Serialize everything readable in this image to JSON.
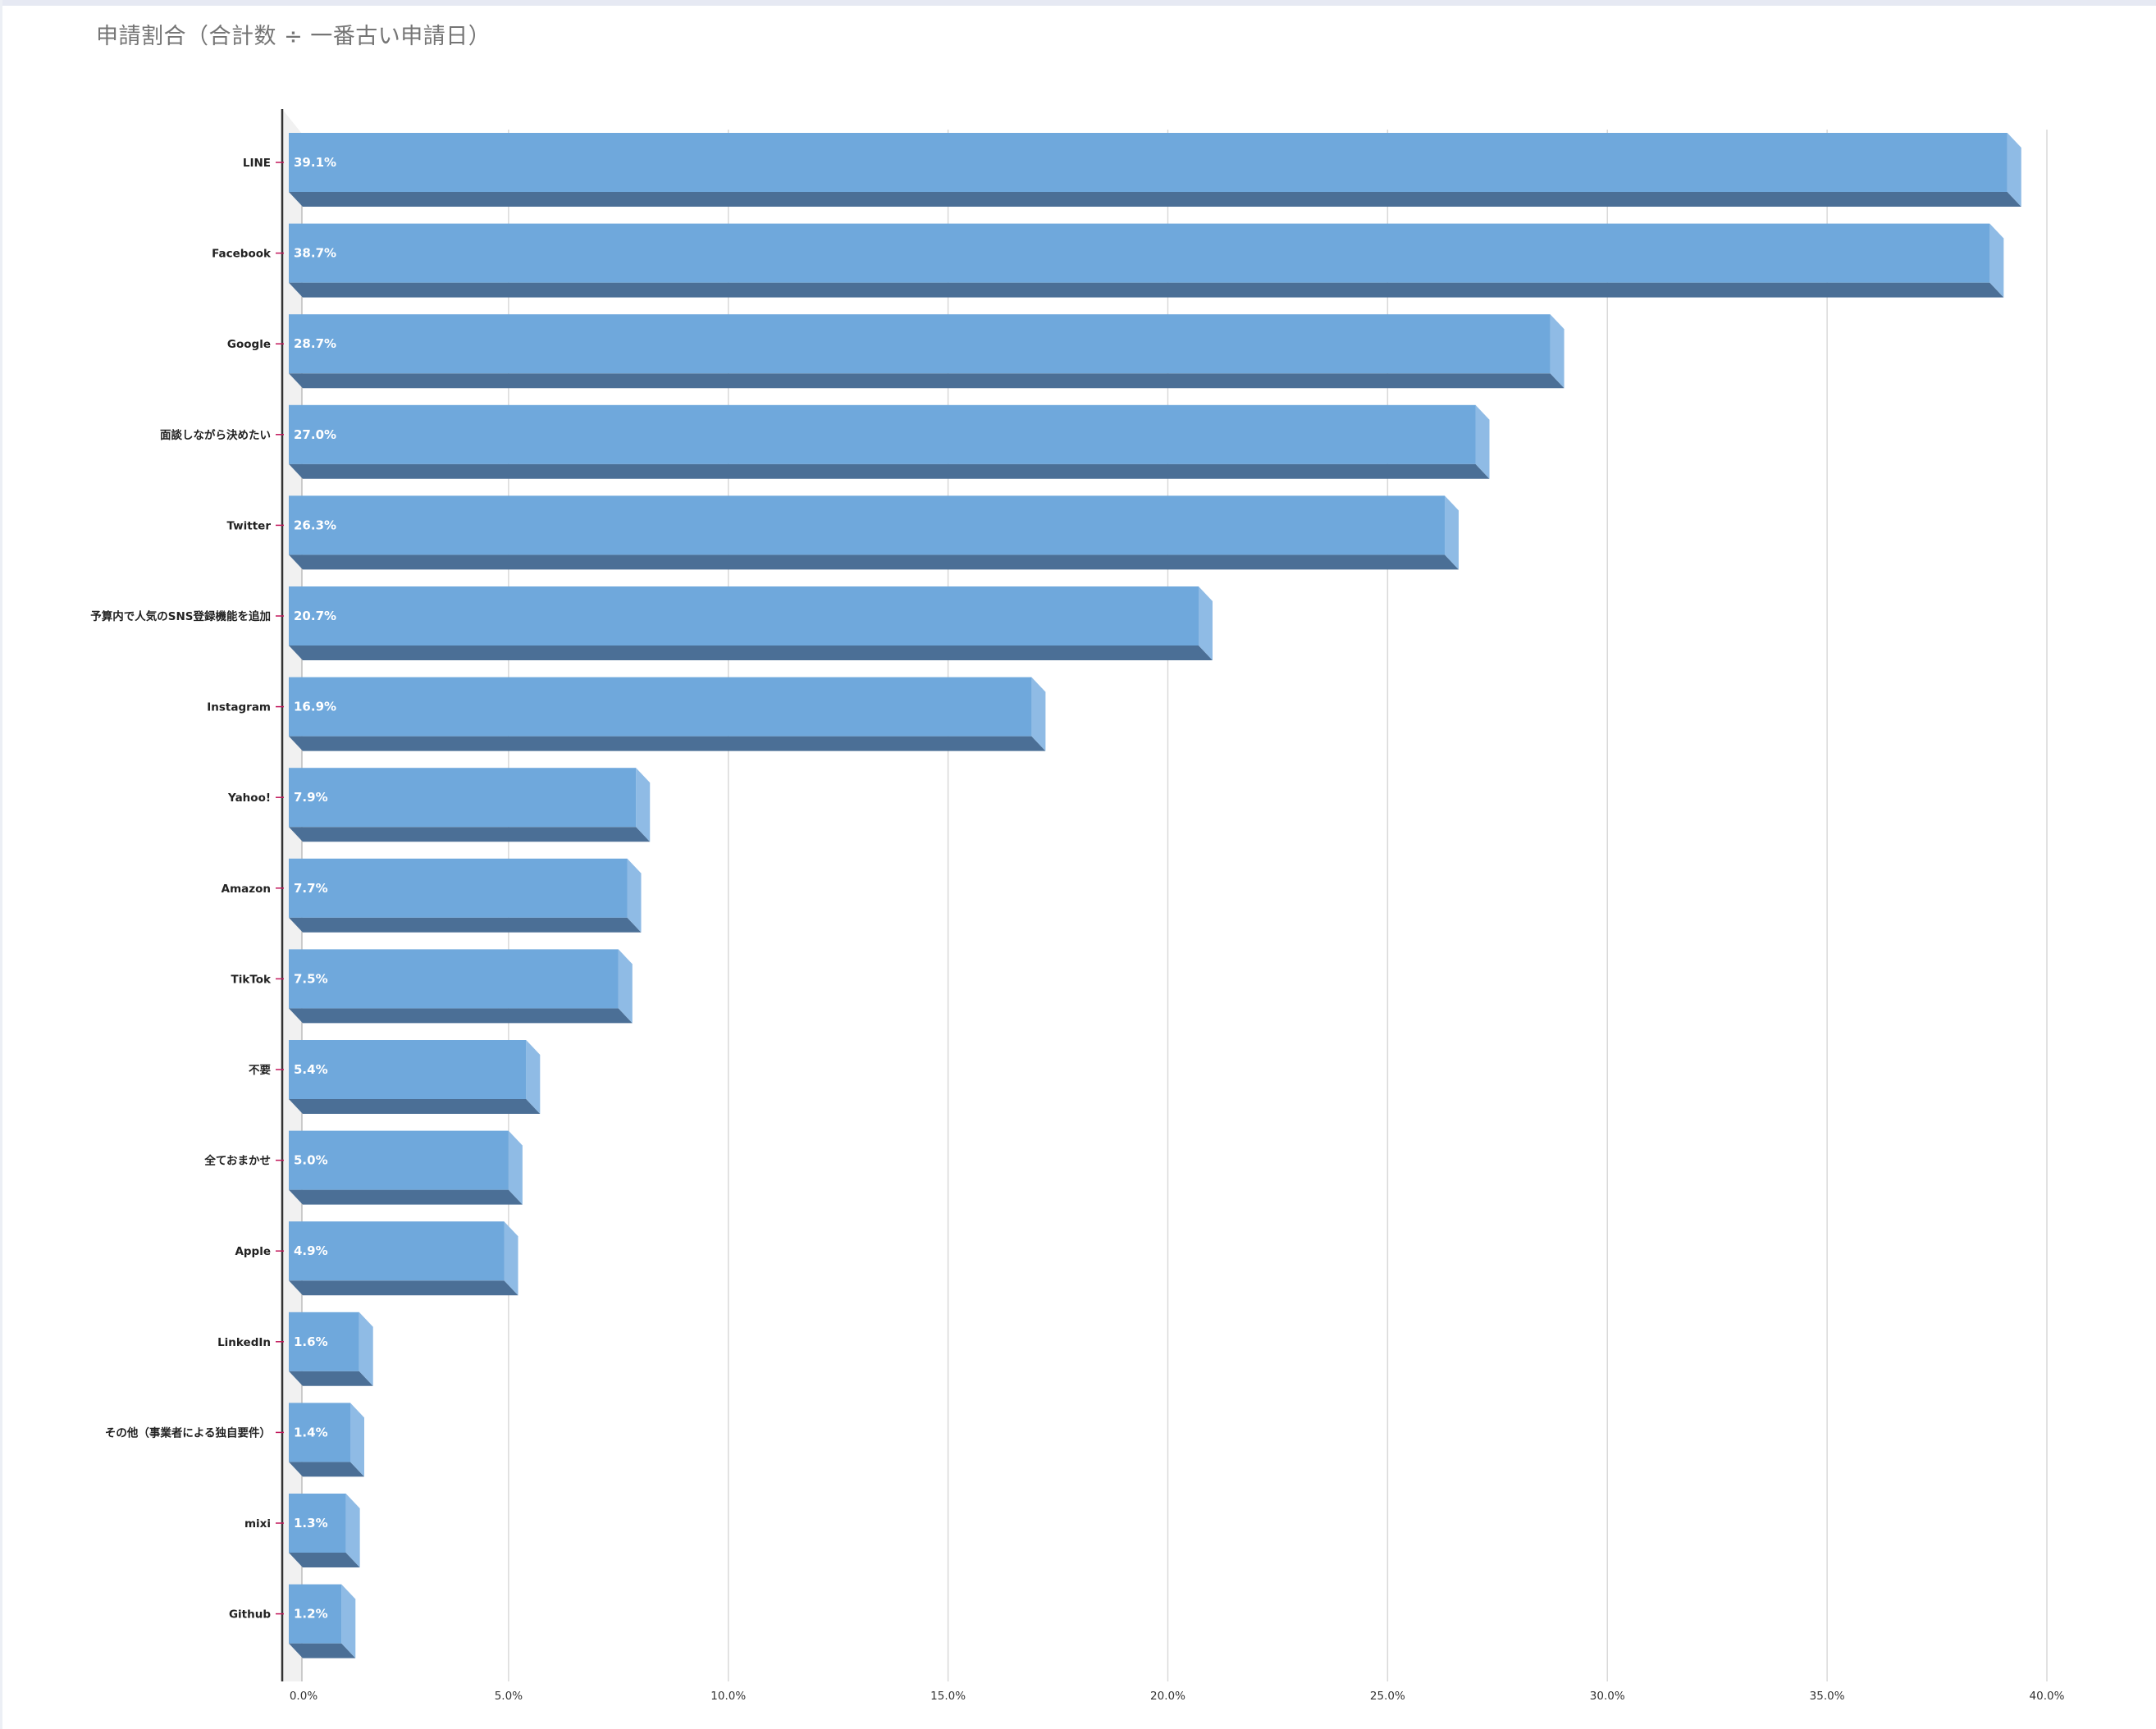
{
  "chart_data": {
    "type": "bar",
    "orientation": "horizontal",
    "style": "3d",
    "title": "申請割合（合計数 ÷ 一番古い申請日）",
    "categories": [
      "LINE",
      "Facebook",
      "Google",
      "面談しながら決めたい",
      "Twitter",
      "予算内で人気のSNS登録機能を追加",
      "Instagram",
      "Yahoo!",
      "Amazon",
      "TikTok",
      "不要",
      "全ておまかせ",
      "Apple",
      "LinkedIn",
      "その他（事業者による独自要件）",
      "mixi",
      "Github"
    ],
    "values": [
      39.1,
      38.7,
      28.7,
      27.0,
      26.3,
      20.7,
      16.9,
      7.9,
      7.7,
      7.5,
      5.4,
      5.0,
      4.9,
      1.6,
      1.4,
      1.3,
      1.2
    ],
    "value_labels": [
      "39.1%",
      "38.7%",
      "28.7%",
      "27.0%",
      "26.3%",
      "20.7%",
      "16.9%",
      "7.9%",
      "7.7%",
      "7.5%",
      "5.4%",
      "5.0%",
      "4.9%",
      "1.6%",
      "1.4%",
      "1.3%",
      "1.2%"
    ],
    "xlim": [
      0,
      40
    ],
    "x_ticks": [
      0,
      5,
      10,
      15,
      20,
      25,
      30,
      35,
      40
    ],
    "x_tick_labels": [
      "0.0%",
      "5.0%",
      "10.0%",
      "15.0%",
      "20.0%",
      "25.0%",
      "30.0%",
      "35.0%",
      "40.0%"
    ],
    "xlabel": "",
    "ylabel": "",
    "grid": "vertical",
    "legend": "none",
    "colors": {
      "bar_front": "#6fa8dc",
      "bar_bottom": "#4b6f96",
      "bar_side": "#8fbbe5",
      "gridline": "#d9d9d9",
      "axis": "#333333",
      "tick_mark": "#c2185b",
      "wall": "#f1f1f1"
    }
  }
}
